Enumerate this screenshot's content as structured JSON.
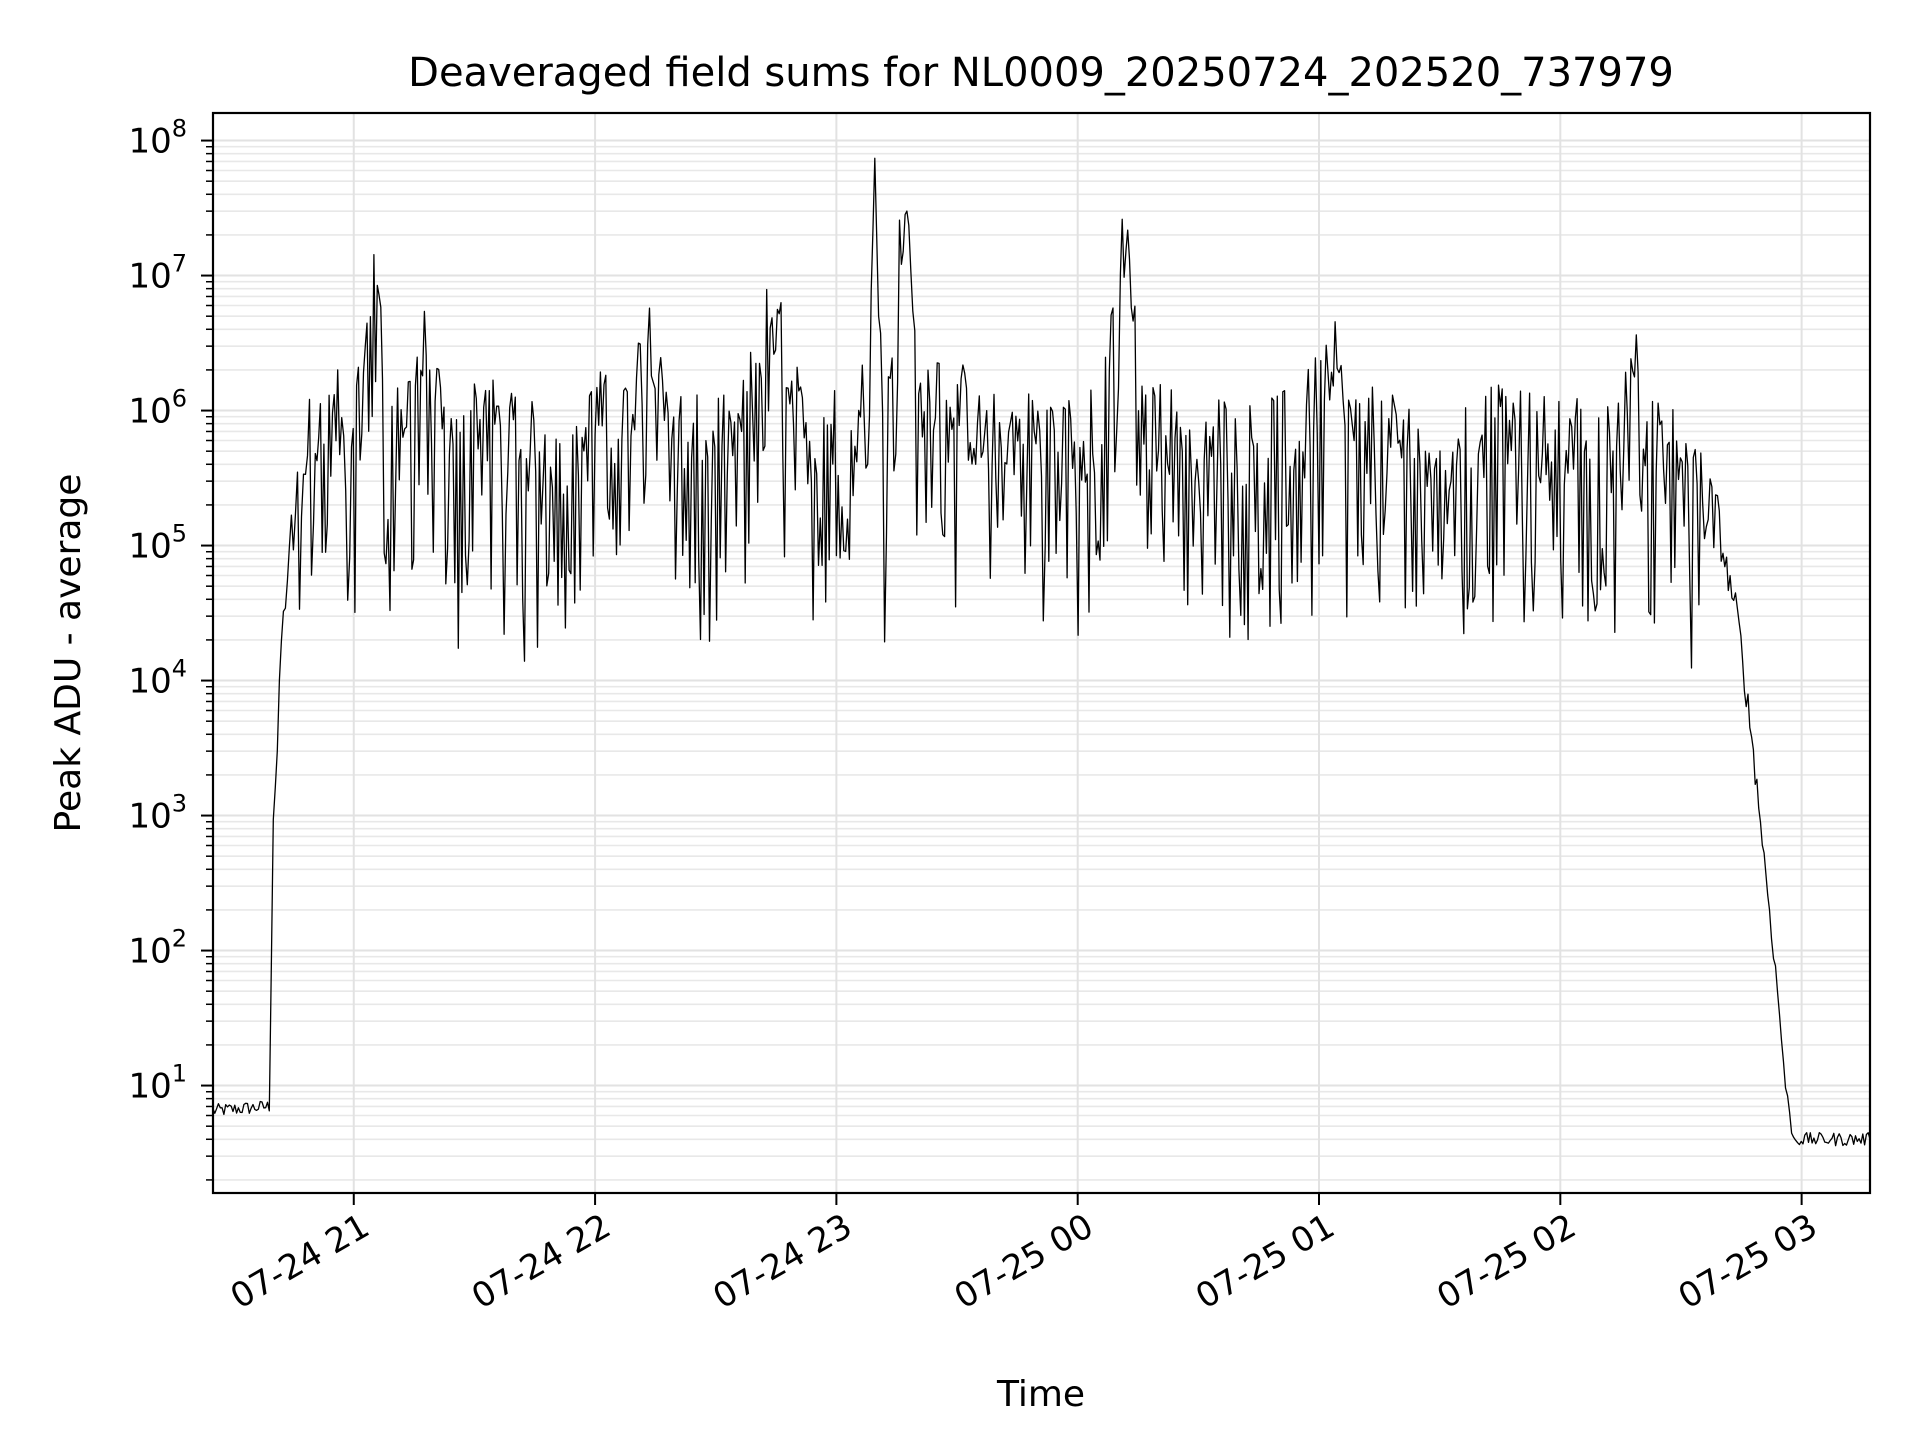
{
  "chart_data": {
    "type": "line",
    "title": "Deaveraged field sums for NL0009_20250724_202520_737979",
    "xlabel": "Time",
    "ylabel": "Peak ADU - average",
    "x_scale": "time",
    "y_scale": "log",
    "xlim": [
      "2025-07-24 20:25",
      "2025-07-25 03:17"
    ],
    "ylim": [
      1.6,
      160000000
    ],
    "grid": "major and minor",
    "legend": "none",
    "line_color": "#000000",
    "x_ticks": [
      "07-24 21",
      "07-24 22",
      "07-24 23",
      "07-25 00",
      "07-25 01",
      "07-25 02",
      "07-25 03"
    ],
    "y_ticks": [
      {
        "value": 10,
        "base": "10",
        "exp": "1"
      },
      {
        "value": 100,
        "base": "10",
        "exp": "2"
      },
      {
        "value": 1000,
        "base": "10",
        "exp": "3"
      },
      {
        "value": 10000,
        "base": "10",
        "exp": "4"
      },
      {
        "value": 100000,
        "base": "10",
        "exp": "5"
      },
      {
        "value": 1000000,
        "base": "10",
        "exp": "6"
      },
      {
        "value": 10000000,
        "base": "10",
        "exp": "7"
      },
      {
        "value": 100000000,
        "base": "10",
        "exp": "8"
      }
    ],
    "series": [
      {
        "x": [
          "2025-07-24 20:25",
          "2025-07-24 20:39",
          "2025-07-24 20:40",
          "2025-07-24 20:41",
          "2025-07-24 20:42",
          "2025-07-24 20:44",
          "2025-07-24 20:46",
          "2025-07-24 20:48",
          "2025-07-24 20:50",
          "2025-07-24 20:53",
          "2025-07-24 20:56",
          "2025-07-24 20:58",
          "2025-07-24 20:59",
          "2025-07-24 21:02",
          "2025-07-24 21:05",
          "2025-07-24 21:08",
          "2025-07-24 21:10",
          "2025-07-24 21:14",
          "2025-07-24 21:18",
          "2025-07-24 21:22",
          "2025-07-24 21:26",
          "2025-07-24 21:30",
          "2025-07-24 21:36",
          "2025-07-24 21:42",
          "2025-07-24 21:48",
          "2025-07-24 21:54",
          "2025-07-24 22:00",
          "2025-07-24 22:08",
          "2025-07-24 22:14",
          "2025-07-24 22:20",
          "2025-07-24 22:28",
          "2025-07-24 22:36",
          "2025-07-24 22:44",
          "2025-07-24 22:52",
          "2025-07-24 23:00",
          "2025-07-24 23:06",
          "2025-07-24 23:10",
          "2025-07-24 23:12",
          "2025-07-24 23:18",
          "2025-07-24 23:20",
          "2025-07-24 23:26",
          "2025-07-24 23:36",
          "2025-07-24 23:46",
          "2025-07-24 23:56",
          "2025-07-25 00:06",
          "2025-07-25 00:12",
          "2025-07-25 00:16",
          "2025-07-25 00:26",
          "2025-07-25 00:36",
          "2025-07-25 00:46",
          "2025-07-25 00:56",
          "2025-07-25 01:04",
          "2025-07-25 01:06",
          "2025-07-25 01:16",
          "2025-07-25 01:26",
          "2025-07-25 01:36",
          "2025-07-25 01:46",
          "2025-07-25 01:56",
          "2025-07-25 02:06",
          "2025-07-25 02:14",
          "2025-07-25 02:18",
          "2025-07-25 02:22",
          "2025-07-25 02:28",
          "2025-07-25 02:34",
          "2025-07-25 02:40",
          "2025-07-25 02:44",
          "2025-07-25 02:48",
          "2025-07-25 02:52",
          "2025-07-25 02:54",
          "2025-07-25 02:56",
          "2025-07-25 02:57",
          "2025-07-25 02:58",
          "2025-07-25 02:59",
          "2025-07-25 03:17"
        ],
        "values": [
          6.5,
          7,
          1000,
          3000,
          20000,
          80000,
          200000,
          500000,
          700000,
          600000,
          900000,
          500000,
          800000,
          1000000,
          18000000,
          1000000,
          700000,
          1200000,
          3000000,
          1000000,
          400000,
          1000000,
          800000,
          500000,
          600000,
          300000,
          900000,
          1000000,
          4000000,
          800000,
          500000,
          700000,
          5500000,
          600000,
          700000,
          700000,
          70000000,
          700000,
          70000000,
          800000,
          2000000,
          600000,
          700000,
          600000,
          700000,
          25000000,
          800000,
          700000,
          600000,
          600000,
          700000,
          3500000,
          800000,
          700000,
          600000,
          700000,
          700000,
          600000,
          600000,
          500000,
          3000000,
          600000,
          500000,
          300000,
          100000,
          30000,
          3000,
          200,
          50,
          10,
          6,
          4,
          4,
          4
        ]
      }
    ]
  }
}
